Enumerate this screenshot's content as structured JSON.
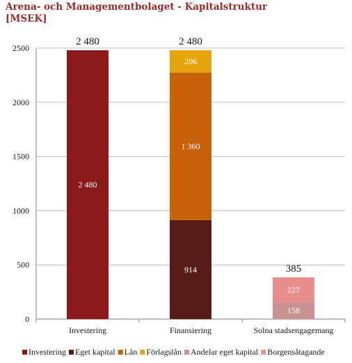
{
  "chart_data": {
    "type": "bar",
    "stacked": true,
    "title": "Arena- och Managementbolaget  - Kapitalstruktur",
    "subtitle": "[MSEK]",
    "xlabel": "",
    "ylabel": "",
    "ylim": [
      0,
      2500
    ],
    "yticks": [
      0,
      500,
      1000,
      1500,
      2000,
      2500
    ],
    "grid": true,
    "legend_position": "bottom",
    "categories": [
      "Investering",
      "Finansiering",
      "Solna stadsengagemang"
    ],
    "totals": [
      "2 480",
      "2 480",
      "385"
    ],
    "series": [
      {
        "name": "Investering",
        "color": "#8b1a1a",
        "values": [
          2480,
          0,
          0
        ],
        "labels": [
          "2 480",
          "",
          ""
        ]
      },
      {
        "name": "Eget kapital",
        "color": "#561c18",
        "values": [
          0,
          914,
          0
        ],
        "labels": [
          "",
          "914",
          ""
        ]
      },
      {
        "name": "Lån",
        "color": "#c8620a",
        "values": [
          0,
          1360,
          0
        ],
        "labels": [
          "",
          "1 360",
          ""
        ]
      },
      {
        "name": "Förlagslån",
        "color": "#e6a40f",
        "values": [
          0,
          206,
          0
        ],
        "labels": [
          "",
          "206",
          ""
        ]
      },
      {
        "name": "Andelar eget kapital",
        "color": "#c99191",
        "values": [
          0,
          0,
          158
        ],
        "labels": [
          "",
          "",
          "158"
        ]
      },
      {
        "name": "Borgensåtagande",
        "color": "#e88e8e",
        "values": [
          0,
          0,
          227
        ],
        "labels": [
          "",
          "",
          "227"
        ]
      }
    ]
  }
}
